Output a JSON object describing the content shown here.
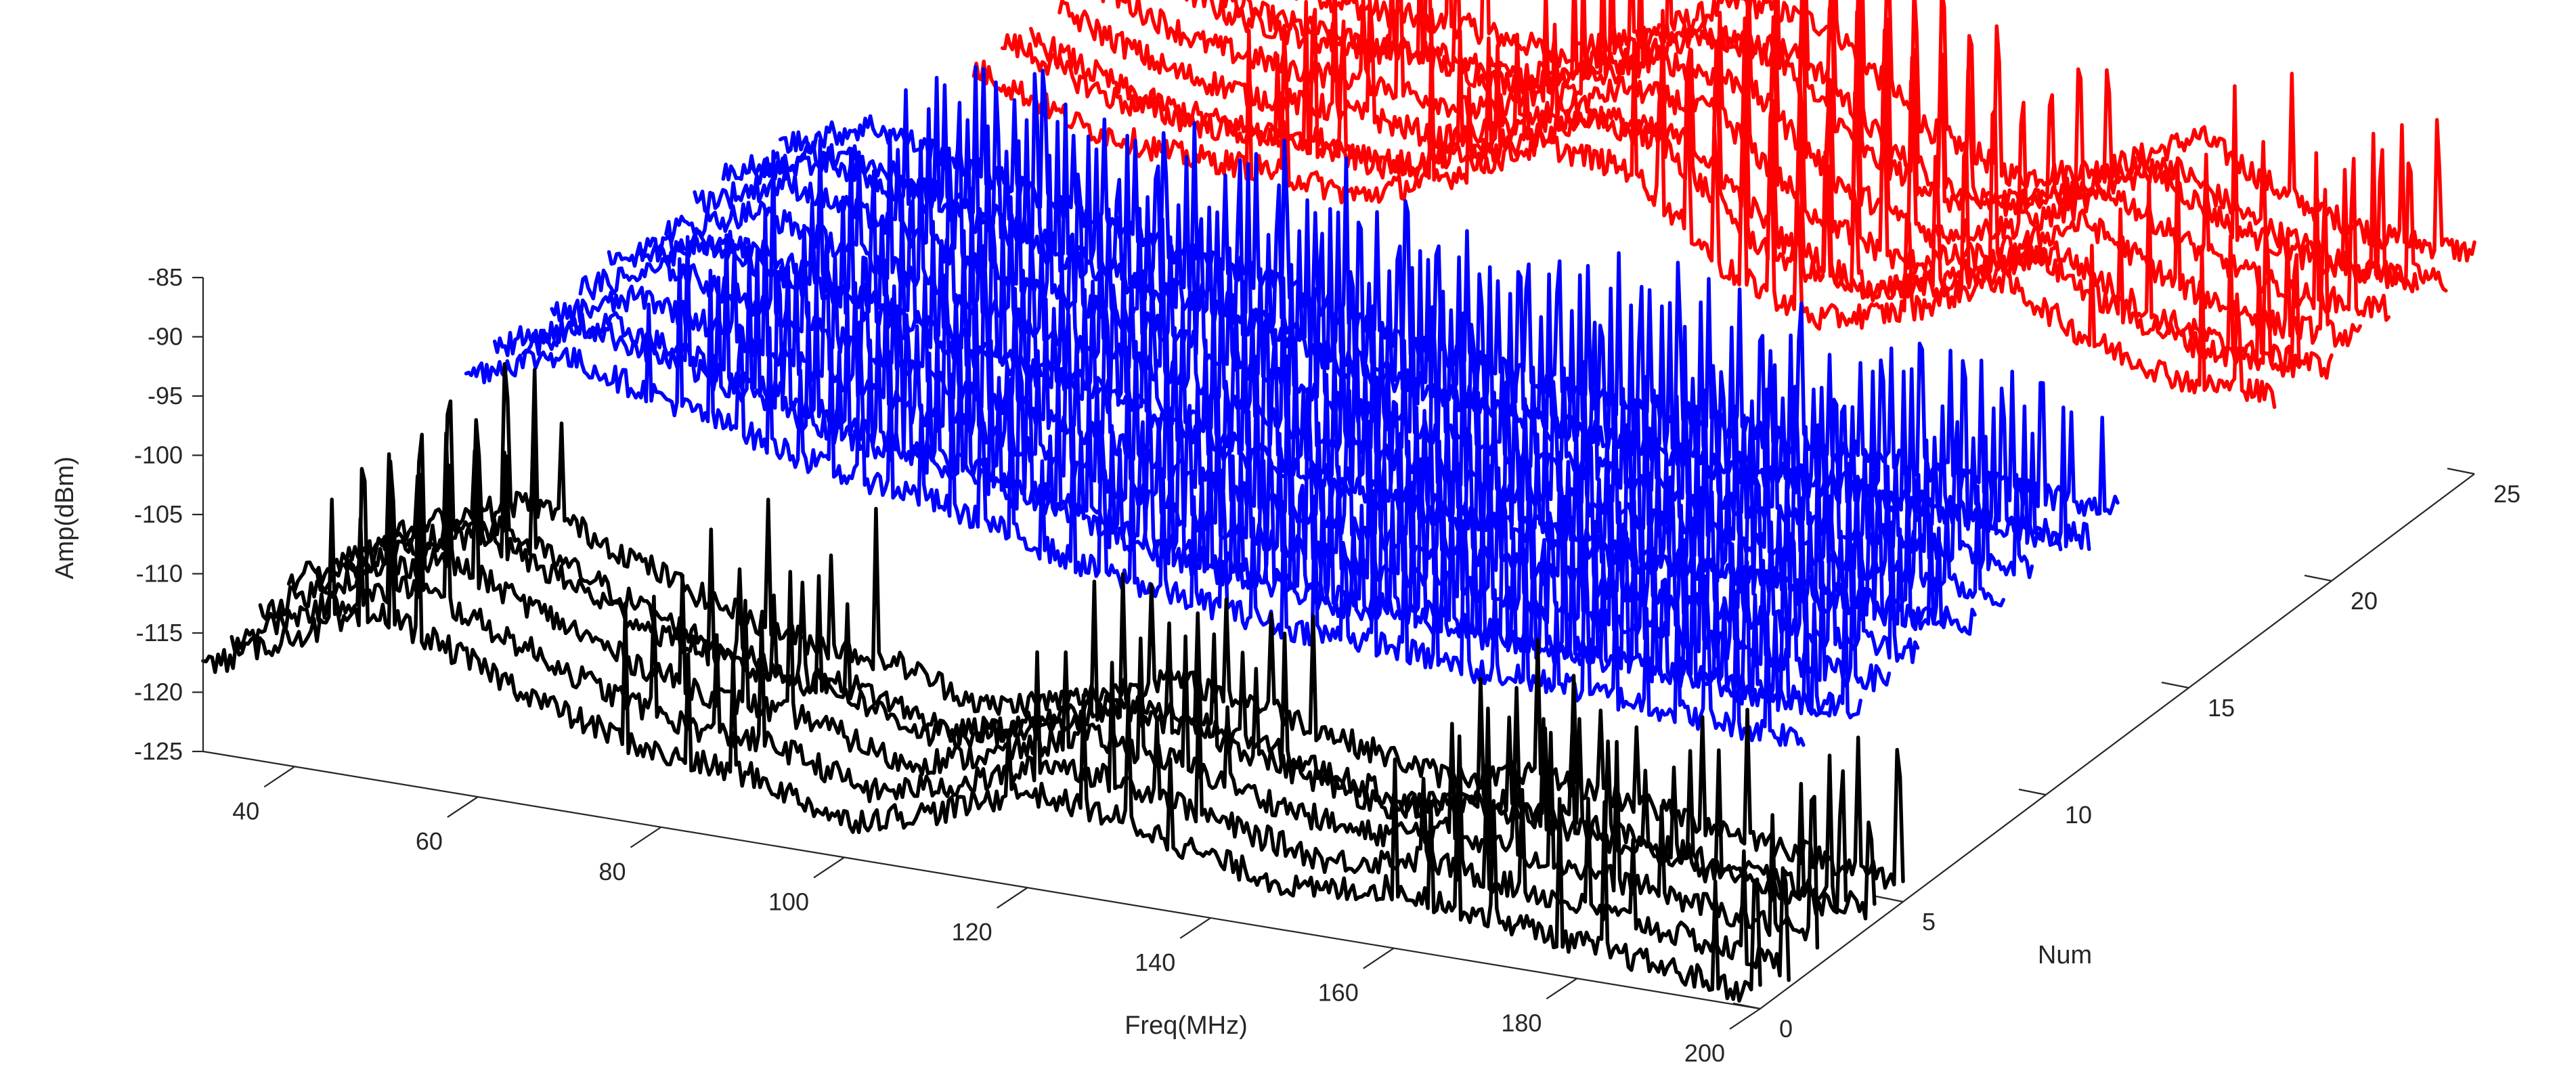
{
  "chart_data": {
    "type": "line-3d-waterfall",
    "xlabel": "Freq(MHz)",
    "ylabel": "Num",
    "zlabel": "Amp(dBm)",
    "xlim": [
      30,
      200
    ],
    "ylim": [
      0,
      25
    ],
    "zlim": [
      -125,
      -85
    ],
    "x_ticks": [
      40,
      60,
      80,
      100,
      120,
      140,
      160,
      180,
      200
    ],
    "y_ticks": [
      0,
      5,
      10,
      15,
      20,
      25
    ],
    "z_ticks": [
      -85,
      -90,
      -95,
      -100,
      -105,
      -110,
      -115,
      -120,
      -125
    ],
    "grid": false,
    "groups": [
      {
        "color": "#000000",
        "nums": [
          0,
          1,
          2,
          3,
          4,
          5
        ]
      },
      {
        "color": "#0000ff",
        "nums": [
          6,
          7,
          8,
          9,
          10,
          11,
          12,
          13,
          14,
          15,
          16,
          17
        ]
      },
      {
        "color": "#ff0000",
        "nums": [
          18,
          19,
          20,
          21,
          22,
          23,
          24,
          25
        ]
      }
    ],
    "black_profile": {
      "num": 0,
      "freq": [
        30,
        40,
        50,
        60,
        70,
        80,
        90,
        100,
        110,
        120,
        130,
        140,
        150,
        160,
        170,
        180,
        190,
        200
      ],
      "amp": [
        -117,
        -113,
        -110,
        -113,
        -116,
        -118,
        -118.5,
        -121,
        -119,
        -116,
        -117,
        -119,
        -120.5,
        -119,
        -120,
        -121,
        -122,
        -123
      ]
    },
    "black_spikes_mhz": [
      44,
      47.5,
      50.5,
      53.5,
      76,
      83,
      88,
      118,
      126,
      131,
      135.5,
      160,
      164,
      167,
      171,
      178,
      183,
      195,
      199.5
    ],
    "blue_profile": {
      "num": 6,
      "freq": [
        30,
        40,
        50,
        60,
        70,
        80,
        90,
        100,
        110,
        120,
        130,
        140,
        150,
        160,
        170,
        180,
        190,
        200
      ],
      "amp": [
        -108,
        -103,
        -100,
        -102,
        -104,
        -106,
        -107,
        -109,
        -111,
        -112,
        -113,
        -113,
        -114,
        -114,
        -114.5,
        -115,
        -115,
        -115
      ]
    },
    "blue_spike_spacing_mhz": 3.3,
    "red_profile": {
      "num": 18,
      "freq": [
        30,
        40,
        50,
        60,
        70,
        80,
        90,
        100,
        110,
        120,
        130,
        140,
        150,
        160,
        170,
        180,
        190,
        200
      ],
      "amp": [
        -102,
        -98,
        -95,
        -97,
        -100,
        -101,
        -101,
        -102,
        -99,
        -95,
        -96,
        -103,
        -106,
        -104,
        -100,
        -104,
        -106,
        -106
      ]
    },
    "red_spikes_mhz": [
      88,
      92,
      108,
      112,
      130,
      133,
      136,
      139,
      142,
      145,
      148,
      160,
      180,
      192,
      196
    ]
  }
}
